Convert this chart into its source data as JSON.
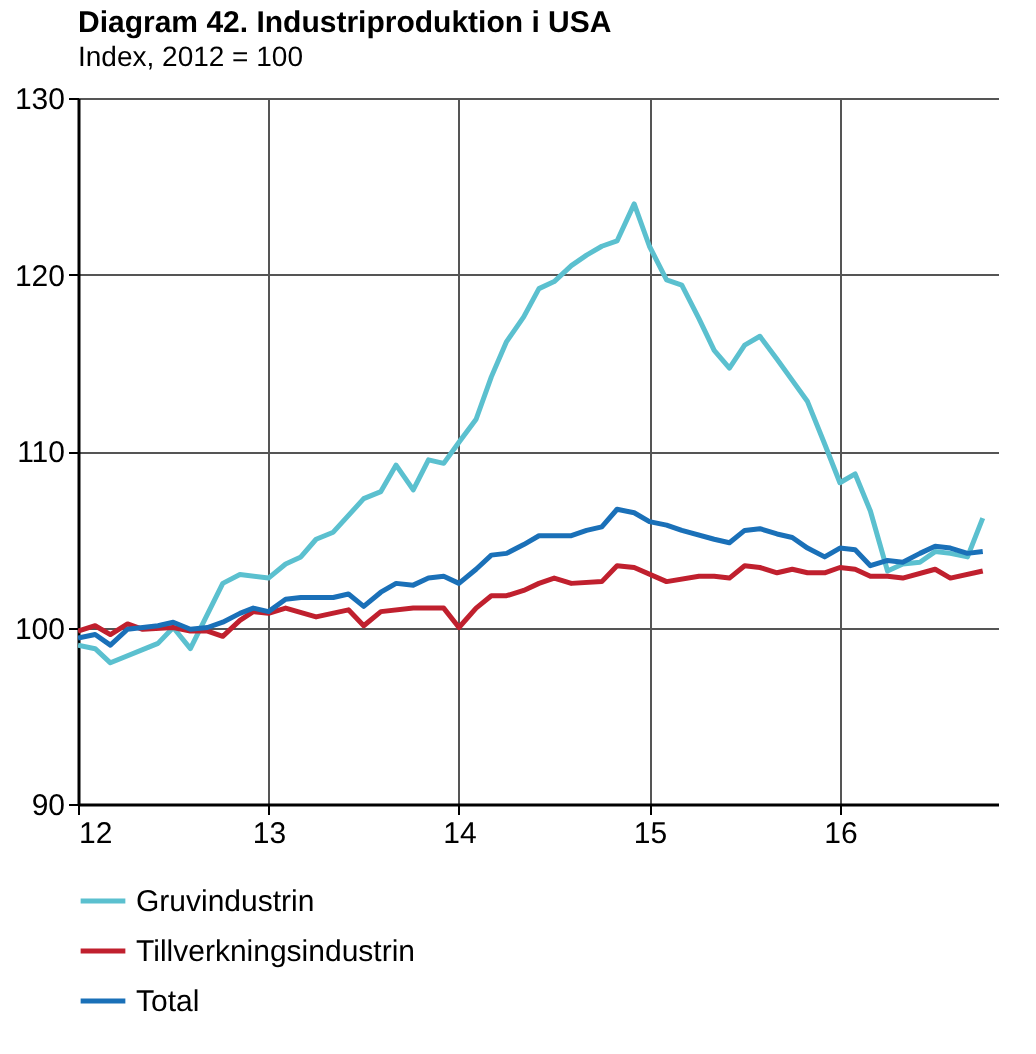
{
  "chart_data": {
    "type": "line",
    "title": "Diagram 42. Industriproduktion i USA",
    "subtitle": "Index, 2012 = 100",
    "xlim": [
      12,
      16.83
    ],
    "xticks": [
      12,
      13,
      14,
      15,
      16
    ],
    "ylim": [
      90,
      130
    ],
    "yticks": [
      90,
      100,
      110,
      120,
      130
    ],
    "grid": true,
    "legend": "bottom",
    "line_style": "solid",
    "series": [
      {
        "name": "Gruvindustrin",
        "color": "#5bc0cf",
        "x": [
          12.0,
          12.09,
          12.17,
          12.42,
          12.5,
          12.59,
          12.76,
          12.85,
          13.0,
          13.09,
          13.17,
          13.25,
          13.34,
          13.5,
          13.59,
          13.67,
          13.76,
          13.84,
          13.92,
          14.0,
          14.09,
          14.17,
          14.25,
          14.34,
          14.42,
          14.5,
          14.59,
          14.67,
          14.75,
          14.83,
          14.92,
          15.0,
          15.09,
          15.17,
          15.26,
          15.34,
          15.42,
          15.5,
          15.58,
          15.67,
          15.75,
          15.83,
          15.92,
          16.0,
          16.08,
          16.16,
          16.25,
          16.33,
          16.42,
          16.5,
          16.58,
          16.67,
          16.75
        ],
        "values": [
          99.0,
          98.8,
          98.0,
          99.1,
          100.0,
          98.8,
          102.5,
          103.0,
          102.8,
          103.6,
          104.0,
          105.0,
          105.4,
          107.3,
          107.7,
          109.2,
          107.8,
          109.5,
          109.3,
          110.5,
          111.8,
          114.2,
          116.2,
          117.6,
          119.2,
          119.6,
          120.5,
          121.1,
          121.6,
          121.9,
          124.0,
          121.6,
          119.7,
          119.4,
          117.5,
          115.7,
          114.7,
          116.0,
          116.5,
          115.2,
          114.0,
          112.8,
          110.4,
          108.2,
          108.7,
          106.6,
          103.2,
          103.6,
          103.7,
          104.3,
          104.2,
          104.0,
          106.2
        ]
      },
      {
        "name": "Tillverkningsindustrin",
        "color": "#c0202e",
        "x": [
          12.0,
          12.09,
          12.17,
          12.26,
          12.34,
          12.5,
          12.59,
          12.68,
          12.76,
          12.85,
          12.92,
          13.0,
          13.09,
          13.25,
          13.42,
          13.5,
          13.59,
          13.76,
          13.92,
          14.0,
          14.09,
          14.17,
          14.25,
          14.34,
          14.42,
          14.5,
          14.59,
          14.75,
          14.83,
          14.92,
          15.09,
          15.26,
          15.34,
          15.42,
          15.5,
          15.58,
          15.67,
          15.75,
          15.83,
          15.92,
          16.0,
          16.08,
          16.16,
          16.25,
          16.33,
          16.5,
          16.58,
          16.75
        ],
        "values": [
          99.8,
          100.1,
          99.6,
          100.2,
          99.9,
          100.0,
          99.8,
          99.8,
          99.5,
          100.4,
          100.9,
          100.8,
          101.1,
          100.6,
          101.0,
          100.1,
          100.9,
          101.1,
          101.1,
          100.0,
          101.1,
          101.8,
          101.8,
          102.1,
          102.5,
          102.8,
          102.5,
          102.6,
          103.5,
          103.4,
          102.6,
          102.9,
          102.9,
          102.8,
          103.5,
          103.4,
          103.1,
          103.3,
          103.1,
          103.1,
          103.4,
          103.3,
          102.9,
          102.9,
          102.8,
          103.3,
          102.8,
          103.2
        ]
      },
      {
        "name": "Total",
        "color": "#1a70b8",
        "x": [
          12.0,
          12.09,
          12.17,
          12.26,
          12.42,
          12.5,
          12.59,
          12.68,
          12.76,
          12.85,
          12.92,
          13.0,
          13.09,
          13.17,
          13.34,
          13.42,
          13.5,
          13.59,
          13.67,
          13.76,
          13.84,
          13.92,
          14.0,
          14.09,
          14.17,
          14.25,
          14.34,
          14.42,
          14.59,
          14.67,
          14.75,
          14.83,
          14.92,
          15.0,
          15.09,
          15.17,
          15.34,
          15.42,
          15.5,
          15.58,
          15.67,
          15.75,
          15.83,
          15.92,
          16.0,
          16.08,
          16.16,
          16.25,
          16.33,
          16.42,
          16.5,
          16.58,
          16.67,
          16.75
        ],
        "values": [
          99.4,
          99.6,
          99.0,
          99.9,
          100.1,
          100.3,
          99.9,
          100.0,
          100.3,
          100.8,
          101.1,
          100.9,
          101.6,
          101.7,
          101.7,
          101.9,
          101.2,
          102.0,
          102.5,
          102.4,
          102.8,
          102.9,
          102.5,
          103.3,
          104.1,
          104.2,
          104.7,
          105.2,
          105.2,
          105.5,
          105.7,
          106.7,
          106.5,
          106.0,
          105.8,
          105.5,
          105.0,
          104.8,
          105.5,
          105.6,
          105.3,
          105.1,
          104.5,
          104.0,
          104.5,
          104.4,
          103.5,
          103.8,
          103.7,
          104.2,
          104.6,
          104.5,
          104.2,
          104.3
        ]
      }
    ]
  }
}
